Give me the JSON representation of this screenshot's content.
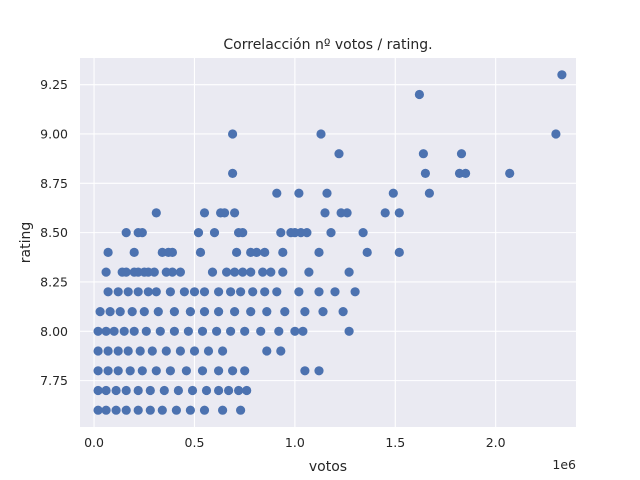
{
  "chart_data": {
    "type": "scatter",
    "title": "Correlacción nº votos / rating.",
    "xlabel": "votos",
    "ylabel": "rating",
    "x_offset_text": "1e6",
    "xlim": [
      -0.07,
      2.4
    ],
    "ylim": [
      7.515,
      9.385
    ],
    "x_ticks": [
      0.0,
      0.5,
      1.0,
      1.5,
      2.0
    ],
    "x_tick_labels": [
      "0.0",
      "0.5",
      "1.0",
      "1.5",
      "2.0"
    ],
    "y_ticks": [
      7.75,
      8.0,
      8.25,
      8.5,
      8.75,
      9.0,
      9.25
    ],
    "y_tick_labels": [
      "7.75",
      "8.00",
      "8.25",
      "8.50",
      "8.75",
      "9.00",
      "9.25"
    ],
    "grid": true,
    "colors": {
      "background": "#eaeaf2",
      "grid": "#ffffff",
      "points": "#4c72b0"
    },
    "series": [
      {
        "points": [
          [
            2.33,
            9.3
          ],
          [
            1.62,
            9.2
          ],
          [
            2.3,
            9.0
          ],
          [
            1.13,
            9.0
          ],
          [
            0.69,
            9.0
          ],
          [
            1.64,
            8.9
          ],
          [
            1.83,
            8.9
          ],
          [
            1.22,
            8.9
          ],
          [
            0.69,
            8.8
          ],
          [
            1.65,
            8.8
          ],
          [
            1.82,
            8.8
          ],
          [
            1.85,
            8.8
          ],
          [
            2.07,
            8.8
          ],
          [
            0.91,
            8.7
          ],
          [
            1.02,
            8.7
          ],
          [
            1.16,
            8.7
          ],
          [
            1.49,
            8.7
          ],
          [
            1.67,
            8.7
          ],
          [
            0.31,
            8.6
          ],
          [
            0.55,
            8.6
          ],
          [
            0.63,
            8.6
          ],
          [
            0.65,
            8.6
          ],
          [
            0.7,
            8.6
          ],
          [
            1.15,
            8.6
          ],
          [
            1.23,
            8.6
          ],
          [
            1.26,
            8.6
          ],
          [
            1.45,
            8.6
          ],
          [
            1.52,
            8.6
          ],
          [
            0.16,
            8.5
          ],
          [
            0.22,
            8.5
          ],
          [
            0.24,
            8.5
          ],
          [
            0.52,
            8.5
          ],
          [
            0.6,
            8.5
          ],
          [
            0.72,
            8.5
          ],
          [
            0.74,
            8.5
          ],
          [
            0.93,
            8.5
          ],
          [
            0.98,
            8.5
          ],
          [
            1.0,
            8.5
          ],
          [
            1.03,
            8.5
          ],
          [
            1.06,
            8.5
          ],
          [
            1.18,
            8.5
          ],
          [
            1.34,
            8.5
          ],
          [
            0.07,
            8.4
          ],
          [
            0.2,
            8.4
          ],
          [
            0.34,
            8.4
          ],
          [
            0.37,
            8.4
          ],
          [
            0.39,
            8.4
          ],
          [
            0.53,
            8.4
          ],
          [
            0.71,
            8.4
          ],
          [
            0.78,
            8.4
          ],
          [
            0.81,
            8.4
          ],
          [
            0.85,
            8.4
          ],
          [
            0.94,
            8.4
          ],
          [
            1.12,
            8.4
          ],
          [
            1.36,
            8.4
          ],
          [
            1.52,
            8.4
          ],
          [
            0.06,
            8.3
          ],
          [
            0.14,
            8.3
          ],
          [
            0.16,
            8.3
          ],
          [
            0.2,
            8.3
          ],
          [
            0.22,
            8.3
          ],
          [
            0.25,
            8.3
          ],
          [
            0.27,
            8.3
          ],
          [
            0.3,
            8.3
          ],
          [
            0.36,
            8.3
          ],
          [
            0.39,
            8.3
          ],
          [
            0.43,
            8.3
          ],
          [
            0.59,
            8.3
          ],
          [
            0.66,
            8.3
          ],
          [
            0.7,
            8.3
          ],
          [
            0.74,
            8.3
          ],
          [
            0.78,
            8.3
          ],
          [
            0.84,
            8.3
          ],
          [
            0.88,
            8.3
          ],
          [
            0.94,
            8.3
          ],
          [
            1.07,
            8.3
          ],
          [
            1.27,
            8.3
          ],
          [
            0.07,
            8.2
          ],
          [
            0.12,
            8.2
          ],
          [
            0.17,
            8.2
          ],
          [
            0.22,
            8.2
          ],
          [
            0.27,
            8.2
          ],
          [
            0.31,
            8.2
          ],
          [
            0.38,
            8.2
          ],
          [
            0.45,
            8.2
          ],
          [
            0.5,
            8.2
          ],
          [
            0.55,
            8.2
          ],
          [
            0.62,
            8.2
          ],
          [
            0.68,
            8.2
          ],
          [
            0.73,
            8.2
          ],
          [
            0.79,
            8.2
          ],
          [
            0.85,
            8.2
          ],
          [
            0.91,
            8.2
          ],
          [
            1.02,
            8.2
          ],
          [
            1.12,
            8.2
          ],
          [
            1.2,
            8.2
          ],
          [
            1.3,
            8.2
          ],
          [
            0.03,
            8.1
          ],
          [
            0.08,
            8.1
          ],
          [
            0.13,
            8.1
          ],
          [
            0.19,
            8.1
          ],
          [
            0.25,
            8.1
          ],
          [
            0.32,
            8.1
          ],
          [
            0.4,
            8.1
          ],
          [
            0.48,
            8.1
          ],
          [
            0.55,
            8.1
          ],
          [
            0.62,
            8.1
          ],
          [
            0.7,
            8.1
          ],
          [
            0.78,
            8.1
          ],
          [
            0.86,
            8.1
          ],
          [
            0.95,
            8.1
          ],
          [
            1.05,
            8.1
          ],
          [
            1.14,
            8.1
          ],
          [
            1.24,
            8.1
          ],
          [
            0.02,
            8.0
          ],
          [
            0.06,
            8.0
          ],
          [
            0.1,
            8.0
          ],
          [
            0.15,
            8.0
          ],
          [
            0.2,
            8.0
          ],
          [
            0.26,
            8.0
          ],
          [
            0.33,
            8.0
          ],
          [
            0.4,
            8.0
          ],
          [
            0.47,
            8.0
          ],
          [
            0.54,
            8.0
          ],
          [
            0.61,
            8.0
          ],
          [
            0.68,
            8.0
          ],
          [
            0.75,
            8.0
          ],
          [
            0.83,
            8.0
          ],
          [
            0.92,
            8.0
          ],
          [
            1.0,
            8.0
          ],
          [
            1.04,
            8.0
          ],
          [
            1.27,
            8.0
          ],
          [
            0.02,
            7.9
          ],
          [
            0.07,
            7.9
          ],
          [
            0.12,
            7.9
          ],
          [
            0.17,
            7.9
          ],
          [
            0.23,
            7.9
          ],
          [
            0.29,
            7.9
          ],
          [
            0.36,
            7.9
          ],
          [
            0.43,
            7.9
          ],
          [
            0.5,
            7.9
          ],
          [
            0.57,
            7.9
          ],
          [
            0.64,
            7.9
          ],
          [
            0.86,
            7.9
          ],
          [
            0.93,
            7.9
          ],
          [
            0.02,
            7.8
          ],
          [
            0.07,
            7.8
          ],
          [
            0.12,
            7.8
          ],
          [
            0.18,
            7.8
          ],
          [
            0.24,
            7.8
          ],
          [
            0.31,
            7.8
          ],
          [
            0.38,
            7.8
          ],
          [
            0.46,
            7.8
          ],
          [
            0.54,
            7.8
          ],
          [
            0.62,
            7.8
          ],
          [
            0.69,
            7.8
          ],
          [
            0.75,
            7.8
          ],
          [
            1.05,
            7.8
          ],
          [
            1.12,
            7.8
          ],
          [
            0.02,
            7.7
          ],
          [
            0.06,
            7.7
          ],
          [
            0.11,
            7.7
          ],
          [
            0.16,
            7.7
          ],
          [
            0.22,
            7.7
          ],
          [
            0.28,
            7.7
          ],
          [
            0.35,
            7.7
          ],
          [
            0.42,
            7.7
          ],
          [
            0.49,
            7.7
          ],
          [
            0.56,
            7.7
          ],
          [
            0.62,
            7.7
          ],
          [
            0.67,
            7.7
          ],
          [
            0.72,
            7.7
          ],
          [
            0.76,
            7.7
          ],
          [
            0.02,
            7.6
          ],
          [
            0.06,
            7.6
          ],
          [
            0.11,
            7.6
          ],
          [
            0.16,
            7.6
          ],
          [
            0.22,
            7.6
          ],
          [
            0.28,
            7.6
          ],
          [
            0.34,
            7.6
          ],
          [
            0.41,
            7.6
          ],
          [
            0.48,
            7.6
          ],
          [
            0.55,
            7.6
          ],
          [
            0.64,
            7.6
          ],
          [
            0.73,
            7.6
          ]
        ]
      }
    ]
  }
}
